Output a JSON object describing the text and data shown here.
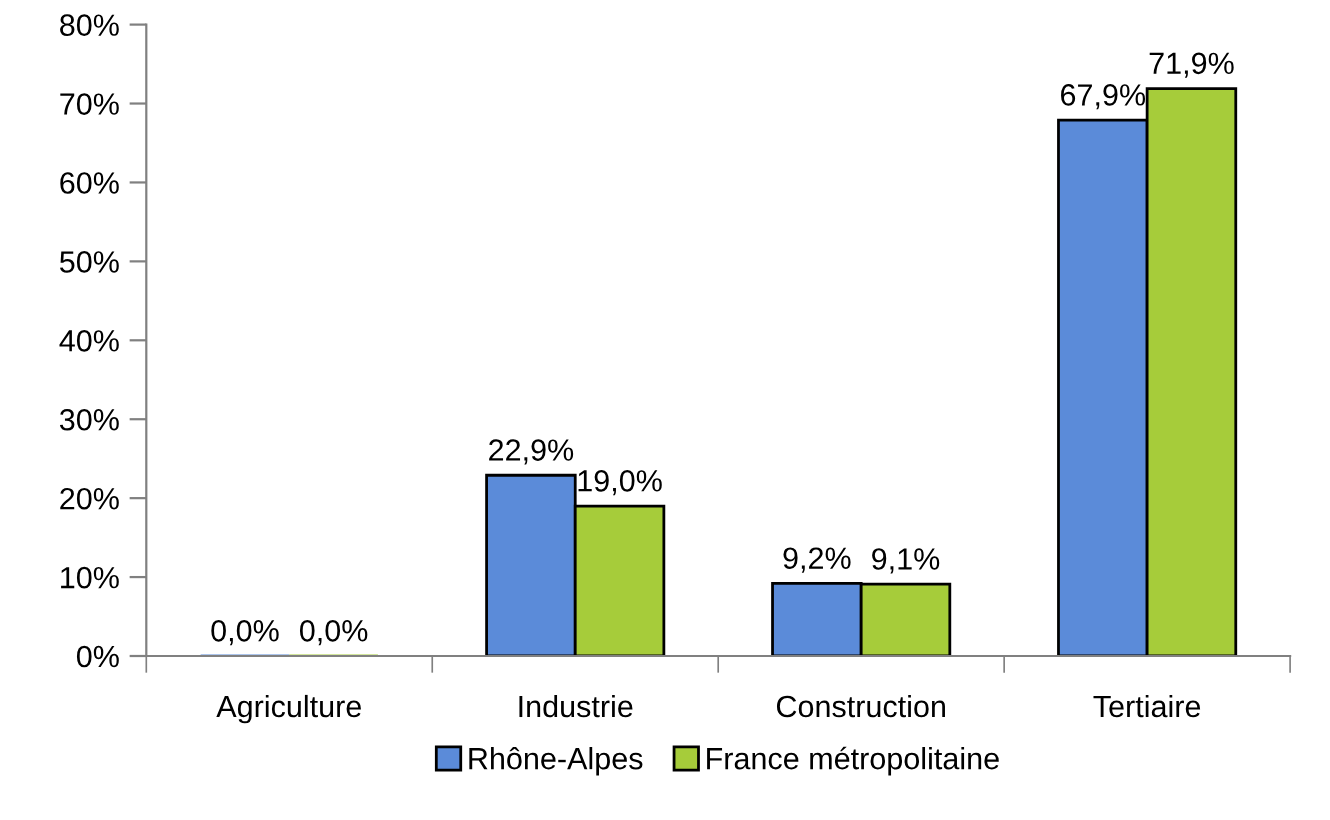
{
  "chart_data": {
    "type": "bar",
    "categories": [
      "Agriculture",
      "Industrie",
      "Construction",
      "Tertiaire"
    ],
    "series": [
      {
        "name": "Rhône-Alpes",
        "color": "#5b8bd9",
        "values": [
          0.0,
          22.9,
          9.2,
          67.9
        ],
        "value_labels": [
          "0,0%",
          "22,9%",
          "9,2%",
          "67,9%"
        ]
      },
      {
        "name": "France métropolitaine",
        "color": "#a6cc3a",
        "values": [
          0.0,
          19.0,
          9.1,
          71.9
        ],
        "value_labels": [
          "0,0%",
          "19,0%",
          "9,1%",
          "71,9%"
        ]
      }
    ],
    "ylim": [
      0,
      80
    ],
    "yticks": [
      {
        "value": 0,
        "label": "0%"
      },
      {
        "value": 10,
        "label": "10%"
      },
      {
        "value": 20,
        "label": "20%"
      },
      {
        "value": 30,
        "label": "30%"
      },
      {
        "value": 40,
        "label": "40%"
      },
      {
        "value": 50,
        "label": "50%"
      },
      {
        "value": 60,
        "label": "60%"
      },
      {
        "value": 70,
        "label": "70%"
      },
      {
        "value": 80,
        "label": "80%"
      }
    ],
    "grid": false,
    "legend": "bottom"
  }
}
